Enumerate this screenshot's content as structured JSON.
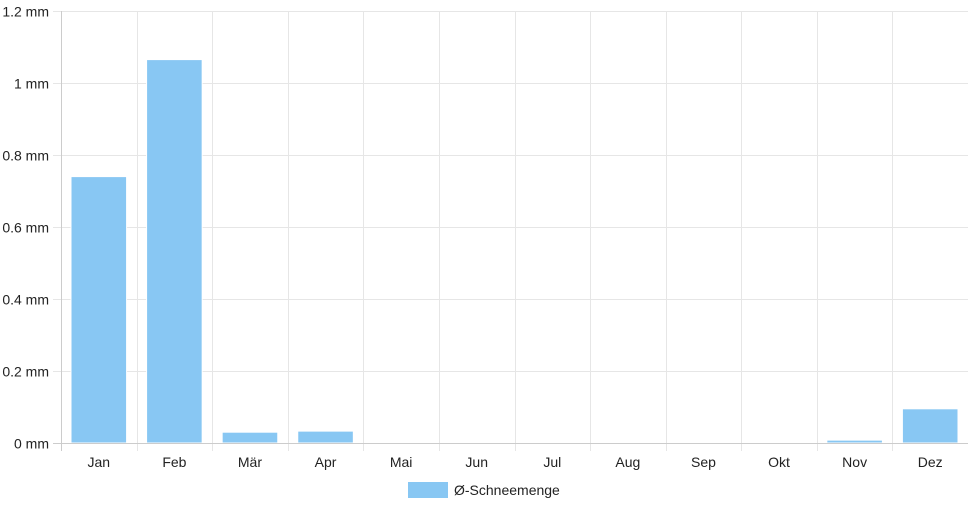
{
  "chart_data": {
    "type": "bar",
    "categories": [
      "Jan",
      "Feb",
      "Mär",
      "Apr",
      "Mai",
      "Jun",
      "Jul",
      "Aug",
      "Sep",
      "Okt",
      "Nov",
      "Dez"
    ],
    "series": [
      {
        "name": "Ø-Schneemenge",
        "values": [
          0.74,
          1.065,
          0.03,
          0.033,
          0,
          0,
          0,
          0,
          0,
          0,
          0.008,
          0.095
        ],
        "color": "#88c7f3"
      }
    ],
    "ylim": [
      0,
      1.2
    ],
    "y_ticks": [
      "0 mm",
      "0.2 mm",
      "0.4 mm",
      "0.6 mm",
      "0.8 mm",
      "1 mm",
      "1.2 mm"
    ],
    "grid": true,
    "legend_position": "bottom-center",
    "legend": {
      "label": "Ø-Schneemenge",
      "color": "#88c7f3"
    },
    "colors": {
      "grid": "#e6e6e6",
      "axis": "#cccccc",
      "text": "#222222"
    }
  }
}
